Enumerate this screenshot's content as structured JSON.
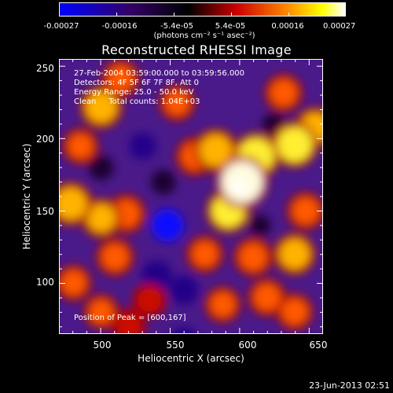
{
  "colorbar": {
    "tick_labels": [
      "-0.00027",
      "-0.00016",
      "-5.4e-05",
      "5.4e-05",
      "0.00016",
      "0.00027"
    ],
    "units": "(photons cm⁻² s⁻¹ asec⁻²)",
    "colors": [
      "#0000ff",
      "#000000",
      "#ff0000",
      "#ffa500",
      "#ffff00",
      "#ffffff"
    ]
  },
  "title": "Reconstructed RHESSI Image",
  "info": {
    "time_range": "27-Feb-2004 03:59:00.000 to 03:59:56.000",
    "detectors": "Detectors: 4F 5F 6F 7F 8F, Att 0",
    "energy_range": "Energy Range: 25.0 - 50.0 keV",
    "algorithm": "Clean     Total counts: 1.04E+03"
  },
  "peak_text": "Position of Peak = [600,167]",
  "axes": {
    "xlabel": "Heliocentric X (arcsec)",
    "ylabel": "Heliocentric Y (arcsec)",
    "x_ticks": [
      "500",
      "550",
      "600",
      "650"
    ],
    "y_ticks": [
      "250",
      "200",
      "150",
      "100"
    ]
  },
  "footer_date": "23-Jun-2013 02:51",
  "chart_data": {
    "type": "heatmap",
    "title": "Reconstructed RHESSI Image",
    "xlabel": "Heliocentric X (arcsec)",
    "ylabel": "Heliocentric Y (arcsec)",
    "xlim": [
      470,
      660
    ],
    "ylim": [
      65,
      255
    ],
    "color_range": [
      -0.00027,
      0.00027
    ],
    "peak": [
      600,
      167
    ],
    "blobs": [
      {
        "x": 602,
        "y": 170,
        "value": 0.00028
      },
      {
        "x": 612,
        "y": 188,
        "value": 0.00022
      },
      {
        "x": 592,
        "y": 150,
        "value": 0.00019
      },
      {
        "x": 583,
        "y": 192,
        "value": 0.00018
      },
      {
        "x": 640,
        "y": 196,
        "value": 0.00021
      },
      {
        "x": 655,
        "y": 208,
        "value": 0.00015
      },
      {
        "x": 632,
        "y": 232,
        "value": 0.00012
      },
      {
        "x": 568,
        "y": 188,
        "value": 0.00013
      },
      {
        "x": 575,
        "y": 120,
        "value": 0.00011
      },
      {
        "x": 610,
        "y": 118,
        "value": 0.00013
      },
      {
        "x": 640,
        "y": 120,
        "value": 0.00016
      },
      {
        "x": 648,
        "y": 150,
        "value": 0.00012
      },
      {
        "x": 620,
        "y": 90,
        "value": 0.00012
      },
      {
        "x": 588,
        "y": 85,
        "value": 0.0001
      },
      {
        "x": 640,
        "y": 80,
        "value": 0.00011
      },
      {
        "x": 555,
        "y": 225,
        "value": 0.0001
      },
      {
        "x": 500,
        "y": 222,
        "value": 0.00017
      },
      {
        "x": 514,
        "y": 242,
        "value": 0.00012
      },
      {
        "x": 485,
        "y": 195,
        "value": 0.0001
      },
      {
        "x": 478,
        "y": 155,
        "value": 0.00018
      },
      {
        "x": 500,
        "y": 145,
        "value": 0.00014
      },
      {
        "x": 518,
        "y": 148,
        "value": 0.00013
      },
      {
        "x": 510,
        "y": 118,
        "value": 0.00012
      },
      {
        "x": 480,
        "y": 100,
        "value": 0.0001
      },
      {
        "x": 500,
        "y": 80,
        "value": 9e-05
      },
      {
        "x": 535,
        "y": 88,
        "value": 8e-05
      },
      {
        "x": 520,
        "y": 70,
        "value": 8e-05
      },
      {
        "x": 548,
        "y": 140,
        "value": -0.00018
      },
      {
        "x": 540,
        "y": 105,
        "value": -0.00016
      },
      {
        "x": 560,
        "y": 95,
        "value": -0.00015
      },
      {
        "x": 530,
        "y": 195,
        "value": -0.00012
      },
      {
        "x": 545,
        "y": 170,
        "value": -0.0001
      },
      {
        "x": 500,
        "y": 180,
        "value": -0.0001
      },
      {
        "x": 625,
        "y": 210,
        "value": -8e-05
      },
      {
        "x": 615,
        "y": 140,
        "value": -6e-05
      },
      {
        "x": 560,
        "y": 60,
        "value": -0.00012
      }
    ]
  }
}
